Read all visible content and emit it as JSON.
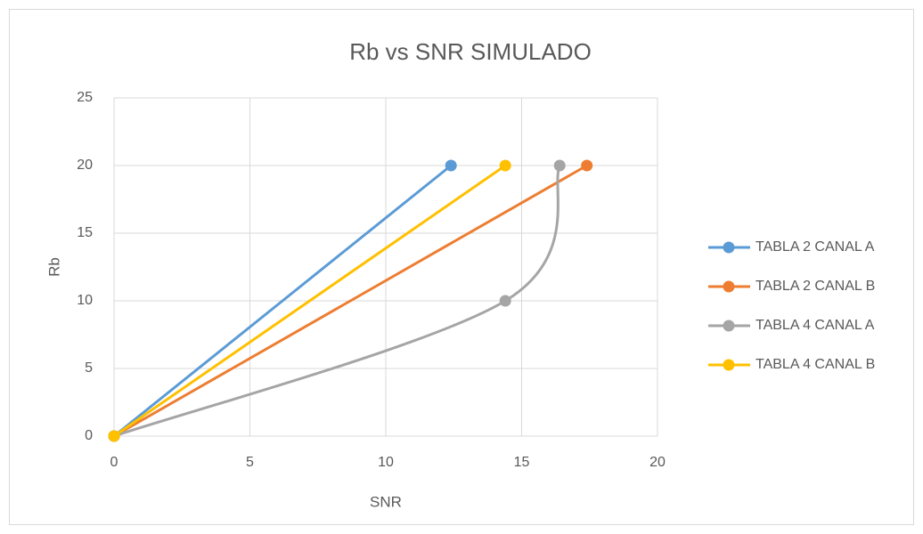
{
  "chart_data": {
    "type": "scatter-smooth",
    "title": "Rb vs SNR SIMULADO",
    "xlabel": "SNR",
    "ylabel": "Rb",
    "xlim": [
      0,
      20
    ],
    "xticks": [
      0,
      5,
      10,
      15,
      20
    ],
    "ylim": [
      0,
      25
    ],
    "yticks": [
      0,
      5,
      10,
      15,
      20,
      25
    ],
    "grid": true,
    "legend": "right",
    "series": [
      {
        "name": "TABLA 2 CANAL A",
        "color": "#5b9bd5",
        "x": [
          0,
          12.4
        ],
        "values": [
          0,
          20
        ]
      },
      {
        "name": "TABLA 2 CANAL B",
        "color": "#ed7d31",
        "x": [
          0,
          17.4
        ],
        "values": [
          0,
          20
        ]
      },
      {
        "name": "TABLA 4 CANAL A",
        "color": "#a5a5a5",
        "x": [
          0,
          14.4,
          16.4
        ],
        "values": [
          0,
          10,
          20
        ]
      },
      {
        "name": "TABLA 4 CANAL B",
        "color": "#ffc000",
        "x": [
          0,
          14.4
        ],
        "values": [
          0,
          20
        ]
      }
    ]
  }
}
